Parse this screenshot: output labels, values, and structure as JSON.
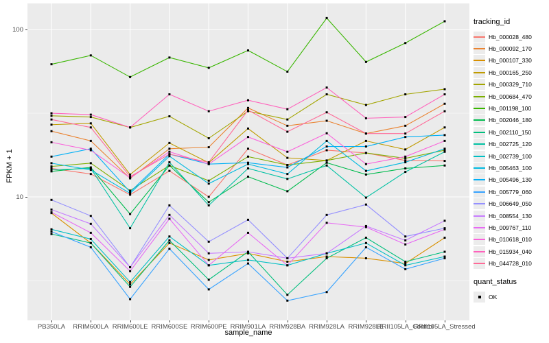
{
  "chart_data": {
    "type": "line",
    "title": "",
    "xlabel": "sample_name",
    "ylabel": "FPKM + 1",
    "yscale": "log10",
    "ylim": [
      1.83,
      140
    ],
    "y_ticks": [
      {
        "value": 100,
        "label": "100"
      },
      {
        "value": 10,
        "label": "10"
      }
    ],
    "y_minor_gridlines": [
      31.623,
      3.1623
    ],
    "grid": "on",
    "legend_position": "right",
    "point_marker": "black-square",
    "x_categories": [
      "PB350LA",
      "RRIM600LA",
      "RRIM600LE",
      "RRIM600SE",
      "RRIM600PE",
      "RRIM901LA",
      "RRIM928BA",
      "RRIM928LA",
      "RRIM928LE",
      "RRII105LA_Control",
      "RRII105LA_Stressed"
    ],
    "series": [
      {
        "name": "Hb_000028_480",
        "color": "#F8766D",
        "values": [
          14.8,
          13.7,
          10.3,
          14.3,
          10.0,
          19.4,
          15.5,
          19.0,
          18.3,
          16.5,
          16.4
        ]
      },
      {
        "name": "Hb_000092_170",
        "color": "#EA8331",
        "values": [
          24.7,
          21.6,
          12.9,
          19.4,
          19.8,
          34.0,
          26.6,
          28.5,
          23.9,
          26.6,
          36.0
        ]
      },
      {
        "name": "Hb_000107_330",
        "color": "#D89000",
        "values": [
          8.0,
          5.3,
          3.0,
          5.3,
          4.2,
          4.6,
          4.1,
          4.4,
          4.3,
          4.0,
          5.7
        ]
      },
      {
        "name": "Hb_000165_250",
        "color": "#C09B00",
        "values": [
          27.0,
          27.5,
          13.6,
          21.0,
          16.0,
          25.6,
          17.1,
          16.5,
          21.6,
          19.2,
          26.0
        ]
      },
      {
        "name": "Hb_000329_710",
        "color": "#A3A500",
        "values": [
          30.5,
          30.0,
          26.0,
          30.3,
          22.4,
          32.5,
          29.0,
          41.0,
          35.4,
          41.0,
          44.0
        ]
      },
      {
        "name": "Hb_000684_470",
        "color": "#7CAE00",
        "values": [
          15.2,
          15.9,
          10.9,
          15.4,
          12.5,
          17.4,
          15.5,
          16.5,
          18.3,
          17.0,
          19.0
        ]
      },
      {
        "name": "Hb_001198_100",
        "color": "#39B600",
        "values": [
          62.0,
          70.0,
          52.0,
          68.0,
          59.0,
          75.0,
          56.0,
          117.0,
          64.0,
          83.0,
          112.0
        ]
      },
      {
        "name": "Hb_002046_180",
        "color": "#00BB4E",
        "values": [
          14.2,
          15.0,
          7.9,
          15.4,
          9.3,
          13.2,
          10.8,
          16.0,
          13.6,
          14.8,
          15.4
        ]
      },
      {
        "name": "Hb_002110_150",
        "color": "#00BF7D",
        "values": [
          6.0,
          5.3,
          2.9,
          5.5,
          3.2,
          4.7,
          2.6,
          4.3,
          5.7,
          4.1,
          4.7
        ]
      },
      {
        "name": "Hb_002725_120",
        "color": "#00C1A3",
        "values": [
          14.5,
          14.8,
          6.5,
          16.1,
          8.9,
          14.8,
          12.8,
          15.4,
          9.9,
          14.1,
          18.6
        ]
      },
      {
        "name": "Hb_002739_100",
        "color": "#00BFC4",
        "values": [
          6.4,
          5.6,
          3.1,
          5.8,
          3.9,
          4.2,
          3.9,
          4.6,
          5.3,
          3.9,
          4.4
        ]
      },
      {
        "name": "Hb_005463_100",
        "color": "#00BAE0",
        "values": [
          15.9,
          14.5,
          10.5,
          17.5,
          12.0,
          15.7,
          13.7,
          21.6,
          14.3,
          16.1,
          19.4
        ]
      },
      {
        "name": "Hb_005496_130",
        "color": "#00B0F6",
        "values": [
          17.4,
          19.4,
          10.7,
          18.0,
          15.7,
          16.0,
          15.0,
          20.0,
          20.0,
          22.8,
          23.4
        ]
      },
      {
        "name": "Hb_005779_060",
        "color": "#35A2FF",
        "values": [
          6.2,
          5.0,
          2.45,
          4.9,
          2.8,
          4.0,
          2.4,
          2.7,
          5.0,
          3.7,
          4.3
        ]
      },
      {
        "name": "Hb_006649_050",
        "color": "#9590FF",
        "values": [
          9.6,
          7.7,
          3.8,
          8.9,
          5.4,
          7.3,
          4.3,
          7.8,
          9.0,
          5.8,
          6.5
        ]
      },
      {
        "name": "Hb_008554_130",
        "color": "#C77CFF",
        "values": [
          8.4,
          6.9,
          3.8,
          7.8,
          4.6,
          4.7,
          4.3,
          4.6,
          6.7,
          5.5,
          7.2
        ]
      },
      {
        "name": "Hb_009767_110",
        "color": "#E76BF3",
        "values": [
          8.1,
          6.1,
          3.6,
          7.4,
          3.9,
          6.1,
          3.9,
          7.0,
          6.6,
          5.2,
          6.4
        ]
      },
      {
        "name": "Hb_010618_010",
        "color": "#FA62DB",
        "values": [
          21.2,
          19.0,
          13.0,
          18.6,
          15.7,
          22.8,
          18.6,
          24.0,
          15.7,
          17.4,
          21.6
        ]
      },
      {
        "name": "Hb_015934_040",
        "color": "#FF62BC",
        "values": [
          31.6,
          31.0,
          26.0,
          41.0,
          32.5,
          37.8,
          33.4,
          45.0,
          29.5,
          30.0,
          41.0
        ]
      },
      {
        "name": "Hb_044728_010",
        "color": "#FF6A98",
        "values": [
          29.0,
          26.0,
          13.2,
          18.0,
          16.1,
          33.0,
          24.5,
          32.0,
          23.9,
          23.9,
          32.5
        ]
      }
    ]
  },
  "legend": {
    "tracking_title": "tracking_id",
    "quant_title": "quant_status",
    "quant_ok_label": "OK"
  },
  "style": {
    "panel_bg": "#EBEBEB",
    "gridline_color": "#FFFFFF",
    "point_color": "#000000",
    "tick_color": "#333333",
    "tick_text_color": "#4D4D4D"
  }
}
